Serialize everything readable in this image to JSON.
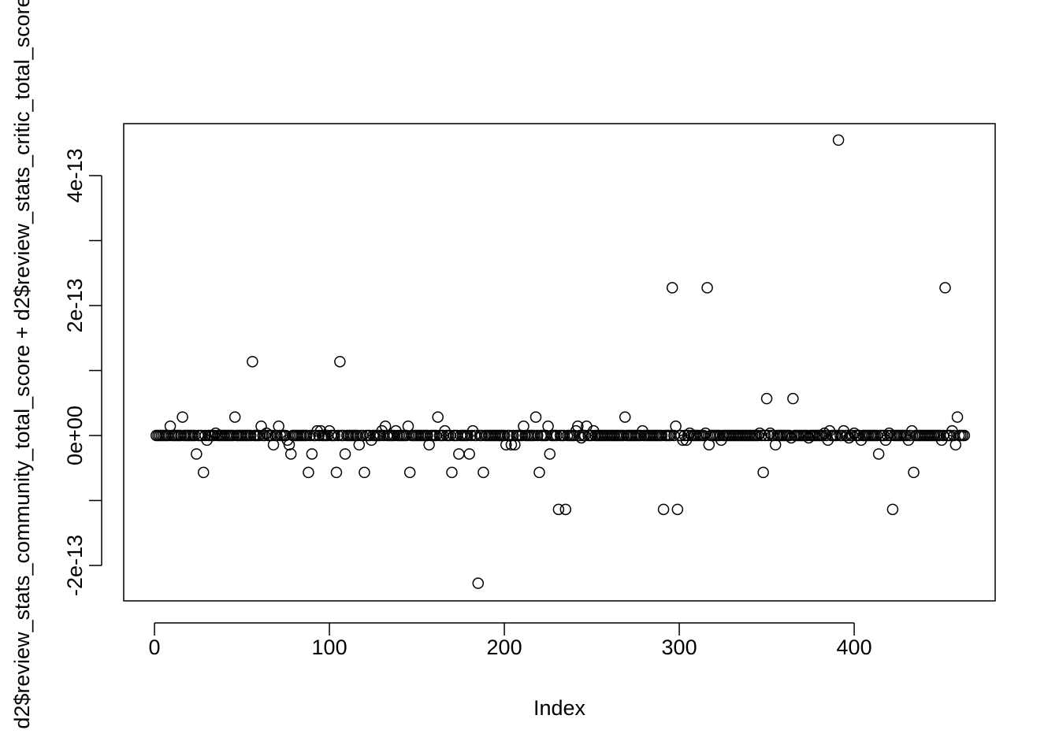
{
  "chart_data": {
    "type": "scatter",
    "x_label": "Index",
    "y_label": "d2$review_stats_community_total_score + d2$review_stats_critic_total_score",
    "xlim": [
      -17.6,
      480.6
    ],
    "xticks": [
      0,
      100,
      200,
      300,
      400
    ],
    "ylim": [
      -2.545e-13,
      4.8e-13
    ],
    "yticks": [
      -2e-13,
      {
        "value": 0,
        "label": "0e+00"
      },
      2e-13,
      4e-13
    ],
    "yticks_unlabeled": [
      -1e-13,
      1e-13,
      3e-13
    ],
    "color": "#000000",
    "x": [
      1,
      2,
      3,
      4,
      5,
      6,
      7,
      8,
      9,
      10,
      11,
      12,
      13,
      14,
      15,
      16,
      17,
      18,
      19,
      20,
      21,
      22,
      23,
      24,
      25,
      26,
      27,
      28,
      29,
      30,
      31,
      32,
      33,
      34,
      35,
      36,
      37,
      38,
      39,
      40,
      41,
      42,
      43,
      44,
      45,
      46,
      47,
      48,
      49,
      50,
      51,
      52,
      53,
      54,
      55,
      56,
      57,
      58,
      59,
      60,
      61,
      62,
      63,
      64,
      65,
      66,
      67,
      68,
      69,
      70,
      71,
      72,
      73,
      74,
      75,
      76,
      77,
      78,
      79,
      80,
      81,
      82,
      83,
      84,
      85,
      86,
      87,
      88,
      89,
      90,
      91,
      92,
      93,
      94,
      95,
      96,
      97,
      98,
      99,
      100,
      101,
      102,
      103,
      104,
      105,
      106,
      107,
      108,
      109,
      110,
      111,
      112,
      113,
      114,
      115,
      116,
      117,
      118,
      119,
      120,
      121,
      122,
      123,
      124,
      125,
      126,
      127,
      128,
      129,
      130,
      131,
      132,
      133,
      134,
      135,
      136,
      137,
      138,
      139,
      140,
      141,
      142,
      143,
      144,
      145,
      146,
      147,
      148,
      149,
      150,
      151,
      152,
      153,
      154,
      155,
      156,
      157,
      158,
      159,
      160,
      161,
      162,
      163,
      164,
      165,
      166,
      167,
      168,
      169,
      170,
      171,
      172,
      173,
      174,
      175,
      176,
      177,
      178,
      179,
      180,
      181,
      182,
      183,
      184,
      185,
      186,
      187,
      188,
      189,
      190,
      191,
      192,
      193,
      194,
      195,
      196,
      197,
      198,
      199,
      200,
      201,
      202,
      203,
      204,
      205,
      206,
      207,
      208,
      209,
      210,
      211,
      212,
      213,
      214,
      215,
      216,
      217,
      218,
      219,
      220,
      221,
      222,
      223,
      224,
      225,
      226,
      227,
      228,
      229,
      230,
      231,
      232,
      233,
      234,
      235,
      236,
      237,
      238,
      239,
      240,
      241,
      242,
      243,
      244,
      245,
      246,
      247,
      248,
      249,
      250,
      251,
      252,
      253,
      254,
      255,
      256,
      257,
      258,
      259,
      260,
      261,
      262,
      263,
      264,
      265,
      266,
      267,
      268,
      269,
      270,
      271,
      272,
      273,
      274,
      275,
      276,
      277,
      278,
      279,
      280,
      281,
      282,
      283,
      284,
      285,
      286,
      287,
      288,
      289,
      290,
      291,
      292,
      293,
      294,
      295,
      296,
      297,
      298,
      299,
      300,
      301,
      302,
      303,
      304,
      305,
      306,
      307,
      308,
      309,
      310,
      311,
      312,
      313,
      314,
      315,
      316,
      317,
      318,
      319,
      320,
      321,
      322,
      323,
      324,
      325,
      326,
      327,
      328,
      329,
      330,
      331,
      332,
      333,
      334,
      335,
      336,
      337,
      338,
      339,
      340,
      341,
      342,
      343,
      344,
      345,
      346,
      347,
      348,
      349,
      350,
      351,
      352,
      353,
      354,
      355,
      356,
      357,
      358,
      359,
      360,
      361,
      362,
      363,
      364,
      365,
      366,
      367,
      368,
      369,
      370,
      371,
      372,
      373,
      374,
      375,
      376,
      377,
      378,
      379,
      380,
      381,
      382,
      383,
      384,
      385,
      386,
      387,
      388,
      389,
      390,
      391,
      392,
      393,
      394,
      395,
      396,
      397,
      398,
      399,
      400,
      401,
      402,
      403,
      404,
      405,
      406,
      407,
      408,
      409,
      410,
      411,
      412,
      413,
      414,
      415,
      416,
      417,
      418,
      419,
      420,
      421,
      422,
      423,
      424,
      425,
      426,
      427,
      428,
      429,
      430,
      431,
      432,
      433,
      434,
      435,
      436,
      437,
      438,
      439,
      440,
      441,
      442,
      443,
      444,
      445,
      446,
      447,
      448,
      449,
      450,
      451,
      452,
      453,
      454,
      455,
      456,
      457,
      458,
      459,
      460,
      461,
      462,
      463
    ],
    "values": [
      0,
      0,
      0,
      0,
      0,
      0,
      0,
      0,
      1.421e-14,
      0,
      0,
      0,
      0,
      0,
      0,
      2.842e-14,
      0,
      0,
      0,
      0,
      0,
      0,
      0,
      -2.842e-14,
      0,
      0,
      0,
      -5.684e-14,
      0,
      -7.105e-15,
      0,
      0,
      0,
      0,
      3.553e-15,
      0,
      0,
      0,
      0,
      0,
      0,
      0,
      0,
      0,
      0,
      2.842e-14,
      0,
      0,
      0,
      0,
      0,
      0,
      0,
      0,
      0,
      1.137e-13,
      0,
      0,
      0,
      0,
      1.421e-14,
      0,
      0,
      3.553e-15,
      0,
      0,
      0,
      -1.421e-14,
      0,
      0,
      1.421e-14,
      0,
      0,
      0,
      0,
      -7.105e-15,
      -1.421e-14,
      -2.842e-14,
      0,
      0,
      0,
      0,
      0,
      0,
      0,
      0,
      0,
      -5.684e-14,
      0,
      -2.842e-14,
      0,
      0,
      7.105e-15,
      0,
      7.105e-15,
      0,
      0,
      0,
      0,
      7.105e-15,
      0,
      0,
      0,
      -5.684e-14,
      0,
      1.137e-13,
      0,
      0,
      -2.842e-14,
      0,
      0,
      0,
      0,
      0,
      0,
      0,
      -1.421e-14,
      0,
      0,
      -5.684e-14,
      0,
      0,
      0,
      -7.105e-15,
      0,
      0,
      0,
      0,
      0,
      7.105e-15,
      0,
      1.421e-14,
      0,
      0,
      0,
      0,
      0,
      7.105e-15,
      0,
      0,
      0,
      0,
      0,
      0,
      1.421e-14,
      -5.684e-14,
      0,
      0,
      0,
      0,
      0,
      0,
      0,
      0,
      0,
      0,
      -1.421e-14,
      0,
      0,
      0,
      0,
      2.842e-14,
      0,
      0,
      0,
      7.105e-15,
      0,
      0,
      0,
      -5.684e-14,
      0,
      0,
      0,
      -2.842e-14,
      0,
      0,
      0,
      0,
      0,
      -2.842e-14,
      0,
      7.105e-15,
      0,
      0,
      -2.274e-13,
      0,
      0,
      -5.684e-14,
      0,
      0,
      0,
      0,
      0,
      0,
      0,
      0,
      0,
      0,
      0,
      0,
      -1.421e-14,
      0,
      0,
      -1.421e-14,
      0,
      -1.421e-14,
      0,
      0,
      0,
      0,
      1.421e-14,
      0,
      0,
      0,
      0,
      0,
      0,
      2.842e-14,
      0,
      -5.684e-14,
      0,
      0,
      0,
      0,
      1.421e-14,
      -2.842e-14,
      0,
      0,
      0,
      0,
      -1.137e-13,
      0,
      0,
      0,
      -1.137e-13,
      0,
      0,
      0,
      0,
      0,
      7.105e-15,
      1.421e-14,
      0,
      -3.553e-15,
      0,
      0,
      1.421e-14,
      0,
      0,
      0,
      7.105e-15,
      0,
      0,
      0,
      0,
      0,
      0,
      0,
      0,
      0,
      0,
      0,
      0,
      0,
      0,
      0,
      0,
      0,
      2.842e-14,
      0,
      0,
      0,
      0,
      0,
      0,
      0,
      0,
      0,
      7.105e-15,
      0,
      0,
      0,
      0,
      0,
      0,
      0,
      0,
      0,
      0,
      0,
      -1.137e-13,
      0,
      0,
      0,
      0,
      2.274e-13,
      0,
      1.421e-14,
      -1.137e-13,
      0,
      0,
      -7.105e-15,
      0,
      -7.105e-15,
      0,
      3.553e-15,
      0,
      0,
      0,
      0,
      0,
      0,
      0,
      0,
      3.553e-15,
      2.274e-13,
      -1.421e-14,
      0,
      0,
      0,
      0,
      0,
      0,
      -7.105e-15,
      0,
      0,
      0,
      0,
      0,
      0,
      0,
      0,
      0,
      0,
      0,
      0,
      0,
      0,
      0,
      0,
      0,
      0,
      0,
      0,
      0,
      3.553e-15,
      0,
      -5.684e-14,
      0,
      5.684e-14,
      0,
      3.553e-15,
      0,
      0,
      -1.421e-14,
      0,
      0,
      0,
      0,
      0,
      0,
      0,
      0,
      -3.553e-15,
      5.684e-14,
      0,
      0,
      0,
      0,
      0,
      0,
      0,
      0,
      -3.553e-15,
      0,
      0,
      0,
      0,
      0,
      0,
      0,
      0,
      3.553e-15,
      0,
      -7.105e-15,
      7.105e-15,
      0,
      0,
      0,
      0,
      4.547e-13,
      0,
      0,
      7.105e-15,
      0,
      0,
      -3.553e-15,
      0,
      0,
      3.553e-15,
      0,
      0,
      0,
      -7.105e-15,
      0,
      0,
      0,
      0,
      0,
      0,
      0,
      0,
      0,
      -2.842e-14,
      0,
      0,
      0,
      -7.105e-15,
      0,
      3.553e-15,
      0,
      -1.137e-13,
      0,
      0,
      0,
      0,
      0,
      0,
      0,
      0,
      -7.105e-15,
      0,
      7.105e-15,
      -5.684e-14,
      0,
      0,
      0,
      0,
      0,
      0,
      0,
      0,
      0,
      0,
      0,
      0,
      0,
      0,
      0,
      -7.105e-15,
      0,
      2.274e-13,
      0,
      0,
      0,
      7.105e-15,
      0,
      -1.421e-14,
      2.842e-14,
      0,
      0,
      0,
      0
    ]
  }
}
